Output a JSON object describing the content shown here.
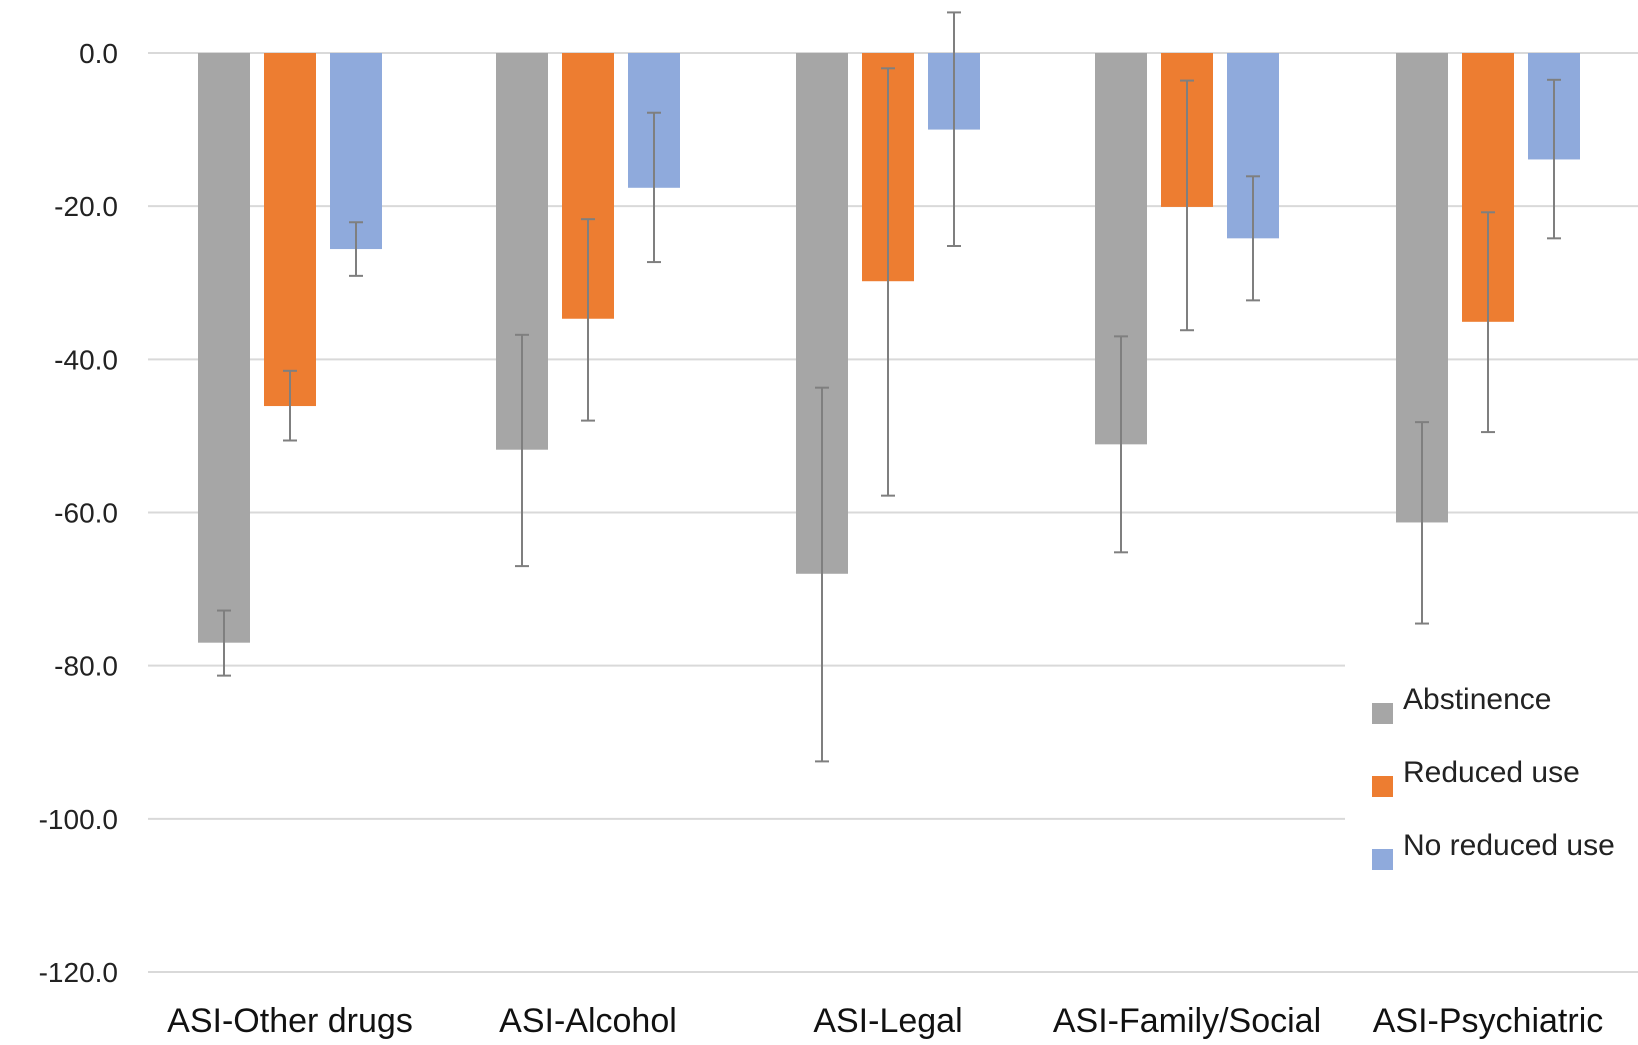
{
  "chart_data": {
    "type": "bar",
    "categories": [
      "ASI-Other drugs",
      "ASI-Alcohol",
      "ASI-Legal",
      "ASI-Family/Social",
      "ASI-Psychiatric"
    ],
    "series": [
      {
        "name": "Abstinence",
        "color": "#a6a6a6",
        "values": [
          -77.0,
          -51.8,
          -68.0,
          -51.1,
          -61.3
        ],
        "error_low": [
          -81.3,
          -67.0,
          -92.5,
          -65.2,
          -74.5
        ],
        "error_high": [
          -72.8,
          -36.8,
          -43.7,
          -37.0,
          -48.2
        ]
      },
      {
        "name": "Reduced use",
        "color": "#ed7d31",
        "values": [
          -46.1,
          -34.7,
          -29.8,
          -20.1,
          -35.1
        ],
        "error_low": [
          -50.6,
          -48.0,
          -57.8,
          -36.2,
          -49.5
        ],
        "error_high": [
          -41.5,
          -21.7,
          -2.0,
          -3.6,
          -20.8
        ]
      },
      {
        "name": "No reduced use",
        "color": "#8faadc",
        "values": [
          -25.6,
          -17.6,
          -10.0,
          -24.2,
          -13.9
        ],
        "error_low": [
          -29.1,
          -27.3,
          -25.2,
          -32.3,
          -24.2
        ],
        "error_high": [
          -22.1,
          -7.8,
          5.3,
          -16.1,
          -3.5
        ]
      }
    ],
    "yticks": [
      "0.0",
      "-20.0",
      "-40.0",
      "-60.0",
      "-80.0",
      "-100.0",
      "-120.0"
    ],
    "ylim": [
      -120,
      0
    ],
    "grid": true,
    "legend_position": "bottom-right"
  }
}
